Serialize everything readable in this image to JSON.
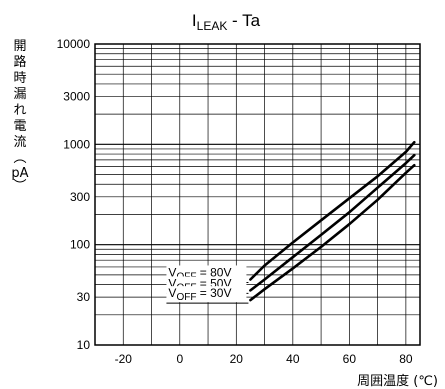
{
  "chart_data": {
    "type": "line",
    "title_main": "I",
    "title_sub": "LEAK",
    "title_rest": " - Ta",
    "xlabel": "周囲温度 (℃)",
    "ylabel": [
      "開",
      "路",
      "時",
      "漏",
      "れ",
      "電",
      "流",
      "︵",
      "pA",
      "︶"
    ],
    "x_ticks": [
      -20,
      0,
      20,
      40,
      60,
      80
    ],
    "y_ticks": [
      10,
      30,
      100,
      300,
      1000,
      3000,
      10000
    ],
    "xlim": [
      -30,
      85
    ],
    "ylim": [
      10,
      10000
    ],
    "y_scale": "log",
    "grid": true,
    "series": [
      {
        "label_main": "V",
        "label_sub": "OFF",
        "label_rest": " = 80V",
        "x": [
          25,
          30,
          40,
          50,
          60,
          70,
          80,
          83
        ],
        "y": [
          45,
          62,
          105,
          175,
          290,
          480,
          840,
          1050
        ]
      },
      {
        "label_main": "V",
        "label_sub": "OFF",
        "label_rest": " = 50V",
        "x": [
          25,
          30,
          40,
          50,
          60,
          70,
          80,
          83
        ],
        "y": [
          35,
          45,
          75,
          125,
          210,
          370,
          650,
          780
        ]
      },
      {
        "label_main": "V",
        "label_sub": "OFF",
        "label_rest": " = 30V",
        "x": [
          25,
          30,
          40,
          50,
          60,
          70,
          80,
          83
        ],
        "y": [
          28,
          36,
          58,
          95,
          160,
          280,
          520,
          620
        ]
      }
    ]
  }
}
